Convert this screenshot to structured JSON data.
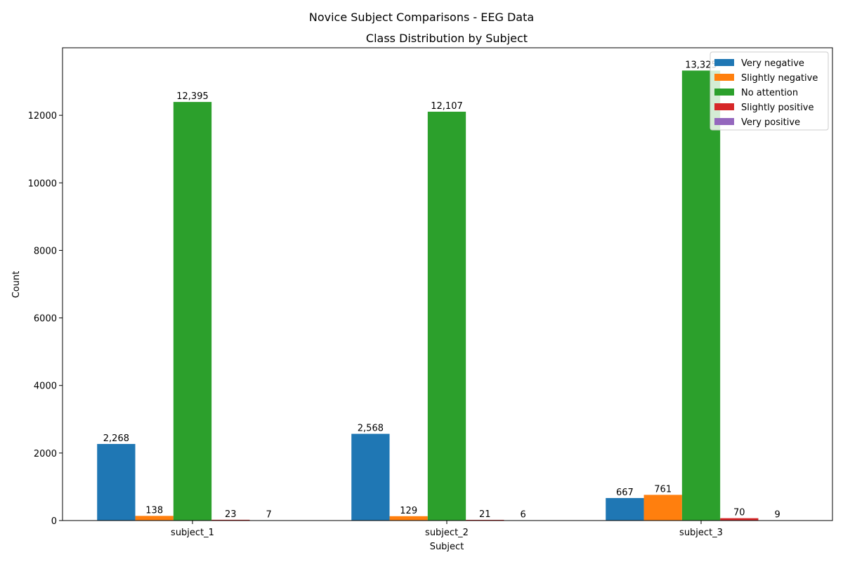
{
  "chart_data": {
    "type": "bar",
    "suptitle": "Novice Subject Comparisons - EEG Data",
    "title": "Class Distribution by Subject",
    "xlabel": "Subject",
    "ylabel": "Count",
    "categories": [
      "subject_1",
      "subject_2",
      "subject_3"
    ],
    "ylim": [
      0,
      14000
    ],
    "yticks": [
      0,
      2000,
      4000,
      6000,
      8000,
      10000,
      12000
    ],
    "ytick_labels": [
      "0",
      "2000",
      "4000",
      "6000",
      "8000",
      "10000",
      "12000"
    ],
    "legend_position": "top-right",
    "grid": false,
    "series": [
      {
        "name": "Very negative",
        "color": "#1f77b4",
        "values": [
          2268,
          2568,
          667
        ],
        "labels": [
          "2,268",
          "2,568",
          "667"
        ]
      },
      {
        "name": "Slightly negative",
        "color": "#ff7f0e",
        "values": [
          138,
          129,
          761
        ],
        "labels": [
          "138",
          "129",
          "761"
        ]
      },
      {
        "name": "No attention",
        "color": "#2ca02c",
        "values": [
          12395,
          12107,
          13325
        ],
        "labels": [
          "12,395",
          "12,107",
          "13,325"
        ]
      },
      {
        "name": "Slightly positive",
        "color": "#d62728",
        "values": [
          23,
          21,
          70
        ],
        "labels": [
          "23",
          "21",
          "70"
        ]
      },
      {
        "name": "Very positive",
        "color": "#9467bd",
        "values": [
          7,
          6,
          9
        ],
        "labels": [
          "7",
          "6",
          "9"
        ]
      }
    ]
  }
}
